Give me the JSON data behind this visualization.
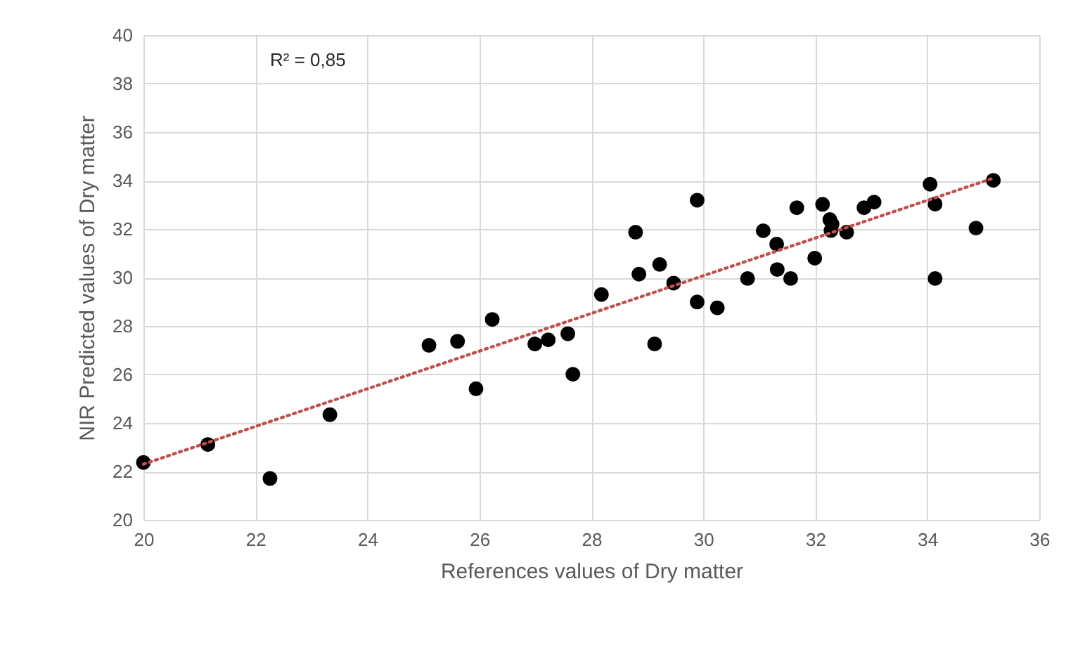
{
  "chart_data": {
    "type": "scatter",
    "xlabel": "References values of Dry matter",
    "ylabel": "NIR Predicted values of Dry matter",
    "annotations": [
      "R² = 0,85"
    ],
    "xlim": [
      20,
      36
    ],
    "xticks": [
      20,
      22,
      24,
      26,
      28,
      30,
      32,
      34,
      36
    ],
    "ylim": [
      20,
      40
    ],
    "yticks": [
      20,
      22,
      24,
      26,
      28,
      30,
      32,
      34,
      36,
      38,
      40
    ],
    "grid": true,
    "marker": "circle",
    "series": [
      {
        "color": "#000000",
        "x": [
          20.0,
          21.15,
          22.26,
          23.33,
          25.1,
          25.61,
          25.94,
          26.23,
          26.99,
          27.23,
          27.58,
          27.67,
          28.18,
          28.79,
          28.85,
          29.22,
          29.13,
          29.47,
          29.89,
          29.89,
          30.25,
          30.79,
          31.07,
          31.31,
          31.32,
          31.56,
          31.67,
          31.99,
          32.13,
          32.26,
          32.3,
          32.28,
          32.56,
          32.87,
          33.05,
          34.05,
          34.14,
          34.14,
          34.87,
          35.18
        ],
        "values": [
          22.37,
          23.11,
          21.71,
          24.34,
          27.2,
          27.37,
          25.41,
          28.27,
          27.26,
          27.43,
          27.68,
          26.01,
          29.3,
          31.87,
          30.14,
          30.54,
          27.26,
          29.77,
          33.19,
          28.99,
          28.75,
          29.96,
          31.93,
          31.38,
          30.33,
          29.96,
          32.88,
          30.8,
          33.02,
          32.39,
          32.2,
          31.94,
          31.87,
          32.88,
          33.11,
          33.85,
          33.03,
          29.96,
          32.04,
          34.01
        ]
      },
      {
        "type": "line",
        "color": "#c0504d",
        "line_style": "dotted",
        "marker": "none",
        "x": [
          20,
          35.18
        ],
        "values": [
          22.3,
          34.1
        ]
      }
    ]
  }
}
